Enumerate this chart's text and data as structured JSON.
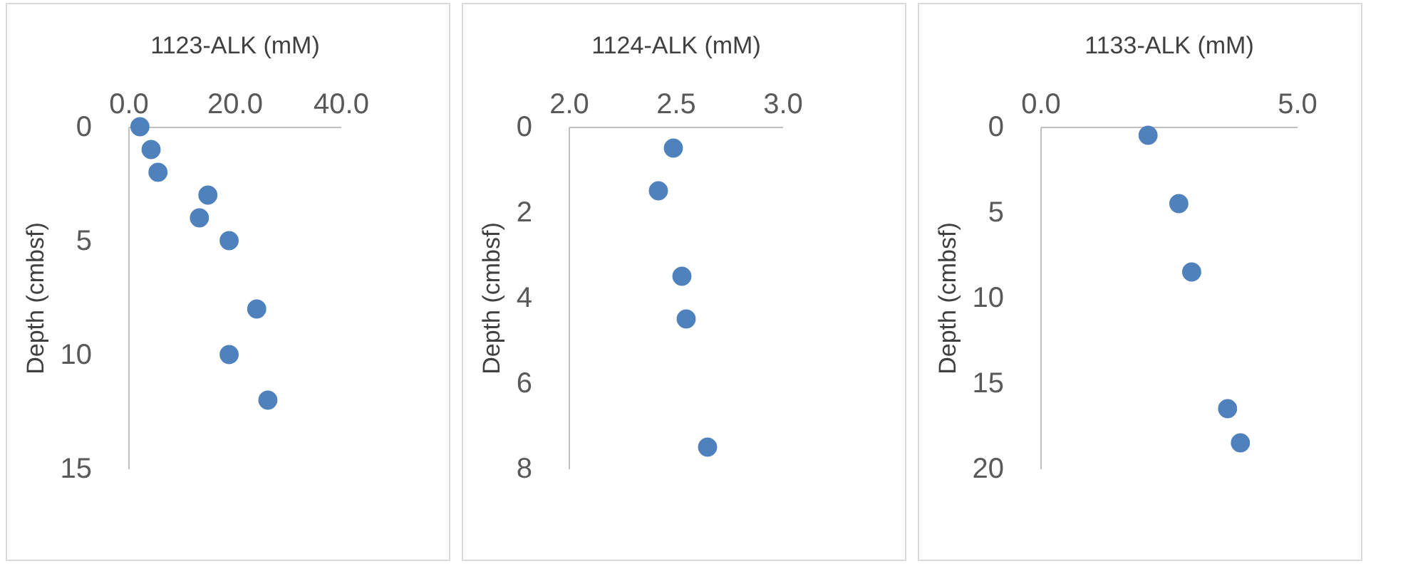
{
  "chart_data": [
    {
      "type": "scatter",
      "xlabel": "1123-ALK (mM)",
      "ylabel": "Depth (cmbsf)",
      "x": [
        2.2,
        4.3,
        5.6,
        15,
        13.4,
        19,
        24.2,
        19,
        26.3
      ],
      "series": [
        {
          "color": "#4f81bd",
          "values": [
            0,
            1,
            2,
            3,
            4,
            5,
            8,
            10,
            12
          ]
        }
      ],
      "xlim": [
        0,
        40
      ],
      "xticks": [
        {
          "value": 0,
          "label": "0.0"
        },
        {
          "value": 20,
          "label": "20.0"
        },
        {
          "value": 40,
          "label": "40.0"
        }
      ],
      "ylim": [
        15,
        0
      ],
      "yticks": [
        0,
        5,
        10,
        15
      ],
      "marker": "circle",
      "grid": false
    },
    {
      "type": "scatter",
      "xlabel": "1124-ALK (mM)",
      "ylabel": "Depth (cmbsf)",
      "x": [
        2.49,
        2.42,
        2.53,
        2.55,
        2.65
      ],
      "series": [
        {
          "color": "#4f81bd",
          "values": [
            0.5,
            1.5,
            3.5,
            4.5,
            7.5
          ]
        }
      ],
      "xlim": [
        2,
        3
      ],
      "xticks": [
        {
          "value": 2,
          "label": "2.0"
        },
        {
          "value": 2.5,
          "label": "2.5"
        },
        {
          "value": 3,
          "label": "3.0"
        }
      ],
      "ylim": [
        8,
        0
      ],
      "yticks": [
        0,
        2,
        4,
        6,
        8
      ],
      "marker": "circle",
      "grid": false
    },
    {
      "type": "scatter",
      "xlabel": "1133-ALK (mM)",
      "ylabel": "Depth (cmbsf)",
      "x": [
        2.1,
        2.7,
        2.95,
        3.65,
        3.9
      ],
      "series": [
        {
          "color": "#4f81bd",
          "values": [
            0.5,
            4.5,
            8.5,
            16.5,
            18.5
          ]
        }
      ],
      "xlim": [
        0,
        5
      ],
      "xticks": [
        {
          "value": 0,
          "label": "0.0"
        },
        {
          "value": 5,
          "label": "5.0"
        }
      ],
      "ylim": [
        20,
        0
      ],
      "yticks": [
        0,
        5,
        10,
        15,
        20
      ],
      "marker": "circle",
      "grid": false
    }
  ]
}
